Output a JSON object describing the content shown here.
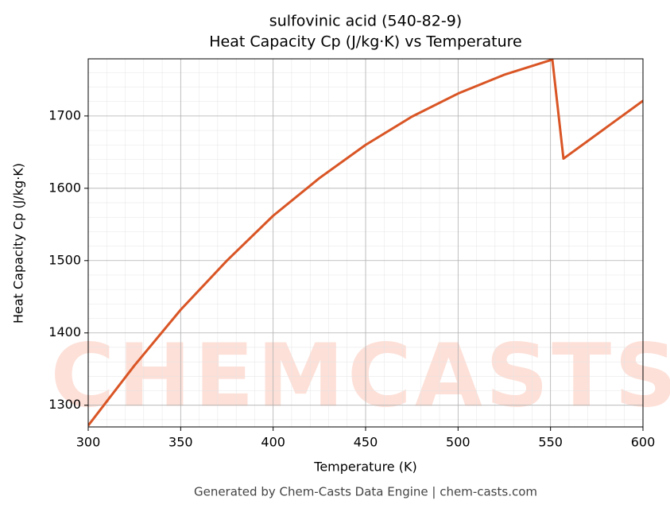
{
  "chart_data": {
    "type": "line",
    "title": "sulfovinic acid (540-82-9)",
    "subtitle": "Heat Capacity Cp (J/kg·K) vs Temperature",
    "x_label": "Temperature (K)",
    "y_label": "Heat Capacity Cp (J/kg·K)",
    "footer": "Generated by Chem-Casts Data Engine | chem-casts.com",
    "watermark": "CHEMCASTS",
    "x": [
      300,
      325,
      350,
      375,
      400,
      425,
      450,
      475,
      500,
      525,
      551,
      557,
      600
    ],
    "series": [
      {
        "name": "Cp",
        "color": "#d95525",
        "values": [
          1272,
          1355,
          1432,
          1500,
          1562,
          1614,
          1660,
          1699,
          1731,
          1757,
          1778,
          1641,
          1721
        ]
      }
    ],
    "xlim": [
      300,
      600
    ],
    "xticks": [
      300,
      350,
      400,
      450,
      500,
      550,
      600
    ],
    "ylim": [
      1270,
      1779
    ],
    "yticks": [
      1300,
      1400,
      1500,
      1600,
      1700
    ],
    "grid": true
  }
}
